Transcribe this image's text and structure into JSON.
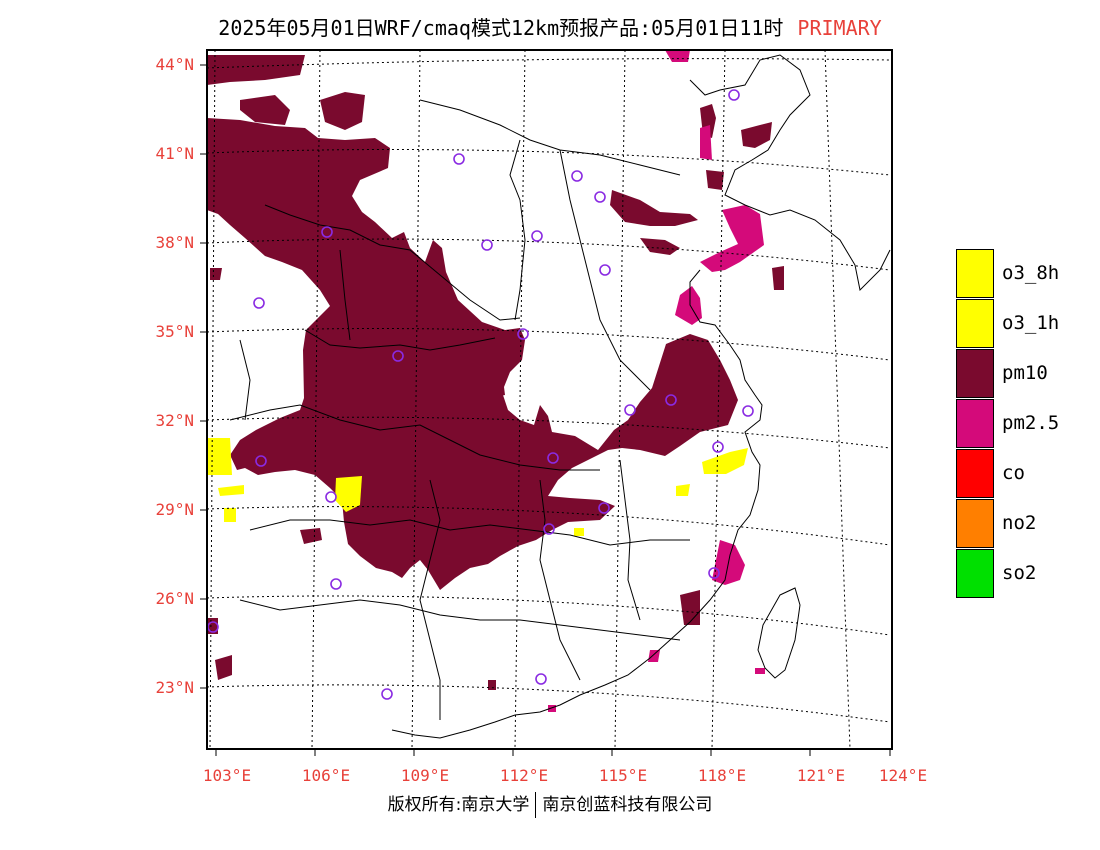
{
  "title": {
    "main": "2025年05月01日WRF/cmaq模式12km预报产品:05月01日11时",
    "tag": "PRIMARY"
  },
  "axes": {
    "lat_labels": [
      "44°N",
      "41°N",
      "38°N",
      "35°N",
      "32°N",
      "29°N",
      "26°N",
      "23°N"
    ],
    "lon_labels": [
      "103°E",
      "106°E",
      "109°E",
      "112°E",
      "115°E",
      "118°E",
      "121°E",
      "124°E"
    ]
  },
  "legend": [
    {
      "label": "o3_8h",
      "color": "#ffff00"
    },
    {
      "label": "o3_1h",
      "color": "#ffff00"
    },
    {
      "label": "pm10",
      "color": "#7a0a2e"
    },
    {
      "label": "pm2.5",
      "color": "#d40a7a"
    },
    {
      "label": "co",
      "color": "#ff0000"
    },
    {
      "label": "no2",
      "color": "#ff7f00"
    },
    {
      "label": "so2",
      "color": "#00e000"
    }
  ],
  "footer": {
    "left": "版权所有:南京大学",
    "right": "南京创蓝科技有限公司"
  },
  "colors": {
    "pm10": "#7a0a2e",
    "pm25": "#d40a7a",
    "o3": "#ffff00",
    "station": "#8a2be2",
    "label_red": "#e8413a"
  }
}
